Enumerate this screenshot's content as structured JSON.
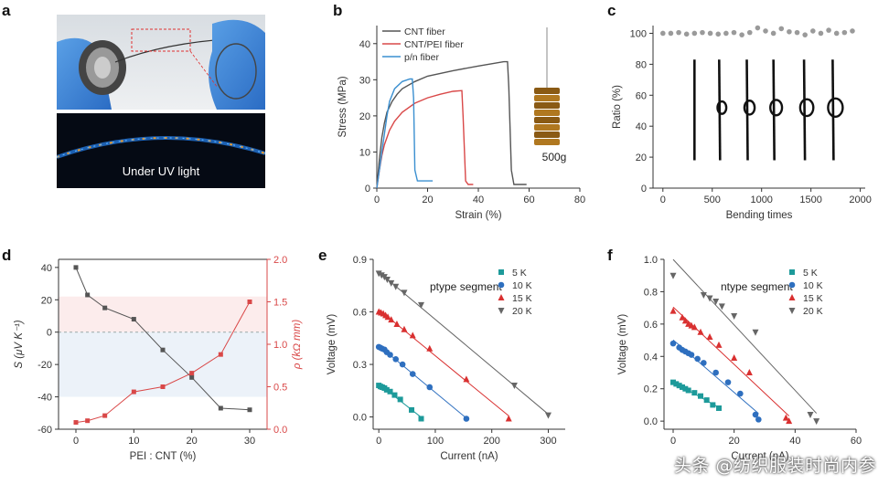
{
  "figure": {
    "panel_labels": [
      "a",
      "b",
      "c",
      "d",
      "e",
      "f"
    ],
    "watermark": "头条 @纺织服装时尚内参"
  },
  "panel_a": {
    "uv_caption": "Under UV light"
  },
  "chart_data": [
    {
      "id": "b",
      "type": "line",
      "title": "",
      "xlabel": "Strain (%)",
      "ylabel": "Stress (MPa)",
      "xlim": [
        0,
        80
      ],
      "ylim": [
        0,
        45
      ],
      "xticks": [
        0,
        20,
        40,
        60,
        80
      ],
      "yticks": [
        0,
        10,
        20,
        30,
        40
      ],
      "legend": "top-left",
      "annotation": "500g",
      "series": [
        {
          "name": "CNT fiber",
          "color": "#555555",
          "x": [
            0,
            1,
            2,
            3,
            4,
            6,
            8,
            10,
            15,
            20,
            30,
            40,
            50,
            51.5,
            52,
            53,
            54,
            56,
            59
          ],
          "y": [
            0,
            8,
            14,
            18,
            21,
            24,
            26,
            27.5,
            29.5,
            31,
            32.5,
            33.8,
            35,
            35,
            28,
            5,
            1,
            1,
            1
          ]
        },
        {
          "name": "CNT/PEI fiber",
          "color": "#d94848",
          "x": [
            0,
            1,
            2,
            3,
            5,
            7,
            10,
            15,
            20,
            25,
            30,
            33.5,
            34,
            35,
            36,
            38
          ],
          "y": [
            0,
            5,
            9,
            12,
            16,
            18.5,
            21,
            23.5,
            25,
            26,
            26.8,
            27,
            20,
            2,
            1,
            1
          ]
        },
        {
          "name": "p/n fiber",
          "color": "#3a8fd0",
          "x": [
            0,
            1,
            2,
            3,
            4,
            5,
            7,
            10,
            13,
            14,
            14.5,
            15,
            16,
            18,
            22
          ],
          "y": [
            0,
            5,
            10,
            15,
            20,
            24,
            27.5,
            29.5,
            30.2,
            30.2,
            25,
            5,
            2,
            2,
            2
          ]
        }
      ]
    },
    {
      "id": "c",
      "type": "scatter",
      "title": "",
      "xlabel": "Bending times",
      "ylabel": "Ratio (%)",
      "xlim": [
        -100,
        2050
      ],
      "ylim": [
        0,
        105
      ],
      "xticks": [
        0,
        500,
        1000,
        1500,
        2000
      ],
      "yticks": [
        0,
        20,
        40,
        60,
        80,
        100
      ],
      "series": [
        {
          "name": "ratio",
          "color": "#9a9a9a",
          "x": [
            0,
            80,
            160,
            240,
            320,
            400,
            480,
            560,
            640,
            720,
            800,
            880,
            960,
            1040,
            1120,
            1200,
            1280,
            1360,
            1440,
            1520,
            1600,
            1680,
            1760,
            1840,
            1920
          ],
          "y": [
            100,
            100,
            100.5,
            99.5,
            100,
            100.5,
            100,
            99.5,
            100,
            100.5,
            99,
            100.5,
            103.5,
            101.5,
            100,
            103,
            101,
            100.5,
            99,
            101.5,
            100,
            102,
            100,
            100.5,
            101.5
          ]
        }
      ]
    },
    {
      "id": "d",
      "type": "line",
      "title": "",
      "xlabel": "PEI : CNT (%)",
      "ylabel": "S (μV K⁻¹)",
      "ylabel_right": "ρ (kΩ mm)",
      "xlim": [
        -3,
        33
      ],
      "ylim": [
        -60,
        45
      ],
      "ylim_right": [
        0,
        2.0
      ],
      "xticks": [
        0,
        10,
        20,
        30
      ],
      "yticks": [
        -60,
        -40,
        -20,
        0,
        20,
        40
      ],
      "yticks_right": [
        0.0,
        0.5,
        1.0,
        1.5,
        2.0
      ],
      "series": [
        {
          "name": "S",
          "axis": "left",
          "color": "#555555",
          "x": [
            0,
            2,
            5,
            10,
            15,
            20,
            25,
            30
          ],
          "y": [
            40,
            23,
            15,
            8,
            -11,
            -28,
            -47,
            -48
          ]
        },
        {
          "name": "rho",
          "axis": "right",
          "color": "#d94848",
          "x": [
            0,
            2,
            5,
            10,
            15,
            20,
            25,
            30
          ],
          "y": [
            0.08,
            0.1,
            0.16,
            0.44,
            0.5,
            0.66,
            0.88,
            1.5
          ]
        }
      ]
    },
    {
      "id": "e",
      "type": "scatter",
      "title": "",
      "annotation": "ptype segment",
      "xlabel": "Current (nA)",
      "ylabel": "Voltage (mV)",
      "xlim": [
        -10,
        330
      ],
      "ylim": [
        -0.07,
        0.9
      ],
      "xticks": [
        0,
        100,
        200,
        300
      ],
      "yticks": [
        0.0,
        0.3,
        0.6,
        0.9
      ],
      "legend": "top-right",
      "series": [
        {
          "name": "5 K",
          "color": "#1d9a9a",
          "marker": "square",
          "x": [
            0,
            3,
            6,
            10,
            14,
            20,
            28,
            38,
            58,
            75
          ],
          "y": [
            0.18,
            0.174,
            0.17,
            0.165,
            0.155,
            0.145,
            0.125,
            0.1,
            0.04,
            -0.01
          ]
        },
        {
          "name": "10 K",
          "color": "#2e6fbf",
          "marker": "circle",
          "x": [
            0,
            3,
            6,
            10,
            14,
            20,
            30,
            42,
            60,
            90,
            155
          ],
          "y": [
            0.4,
            0.395,
            0.39,
            0.385,
            0.37,
            0.355,
            0.33,
            0.3,
            0.245,
            0.17,
            -0.01
          ]
        },
        {
          "name": "15 K",
          "color": "#d93030",
          "marker": "triangle-up",
          "x": [
            0,
            4,
            8,
            12,
            16,
            22,
            32,
            45,
            60,
            90,
            155,
            230
          ],
          "y": [
            0.6,
            0.595,
            0.59,
            0.58,
            0.57,
            0.555,
            0.53,
            0.5,
            0.465,
            0.39,
            0.215,
            -0.01
          ]
        },
        {
          "name": "20 K",
          "color": "#666666",
          "marker": "triangle-down",
          "x": [
            0,
            5,
            10,
            15,
            22,
            30,
            45,
            75,
            240,
            300
          ],
          "y": [
            0.82,
            0.81,
            0.8,
            0.785,
            0.765,
            0.745,
            0.71,
            0.64,
            0.18,
            0.01
          ]
        }
      ]
    },
    {
      "id": "f",
      "type": "scatter",
      "title": "",
      "annotation": "ntype segment",
      "xlabel": "Current (nA)",
      "ylabel": "Voltage (mV)",
      "xlim": [
        -3,
        60
      ],
      "ylim": [
        -0.05,
        1.0
      ],
      "xticks": [
        0,
        20,
        40,
        60
      ],
      "yticks": [
        0.0,
        0.2,
        0.4,
        0.6,
        0.8,
        1.0
      ],
      "legend": "top-right",
      "series": [
        {
          "name": "5 K",
          "color": "#1d9a9a",
          "marker": "square",
          "x": [
            0,
            1,
            2,
            3,
            4,
            5,
            7,
            9,
            11,
            13,
            15
          ],
          "y": [
            0.24,
            0.23,
            0.22,
            0.21,
            0.2,
            0.19,
            0.175,
            0.155,
            0.13,
            0.1,
            0.08
          ]
        },
        {
          "name": "10 K",
          "color": "#2e6fbf",
          "marker": "circle",
          "x": [
            0,
            2,
            3,
            4,
            5,
            6,
            8,
            10,
            14,
            18,
            22,
            27,
            28
          ],
          "y": [
            0.48,
            0.455,
            0.44,
            0.43,
            0.42,
            0.41,
            0.385,
            0.36,
            0.3,
            0.24,
            0.17,
            0.04,
            0.01
          ]
        },
        {
          "name": "15 K",
          "color": "#d93030",
          "marker": "triangle-up",
          "x": [
            0,
            3,
            4,
            5,
            6,
            7,
            9,
            12,
            15,
            20,
            25,
            37,
            38
          ],
          "y": [
            0.68,
            0.64,
            0.62,
            0.6,
            0.59,
            0.58,
            0.55,
            0.52,
            0.47,
            0.39,
            0.3,
            0.02,
            0.0
          ]
        },
        {
          "name": "20 K",
          "color": "#666666",
          "marker": "triangle-down",
          "x": [
            0,
            10,
            12,
            14,
            16,
            20,
            27,
            45,
            47
          ],
          "y": [
            0.9,
            0.78,
            0.76,
            0.74,
            0.71,
            0.65,
            0.55,
            0.04,
            0.0
          ]
        }
      ]
    }
  ]
}
